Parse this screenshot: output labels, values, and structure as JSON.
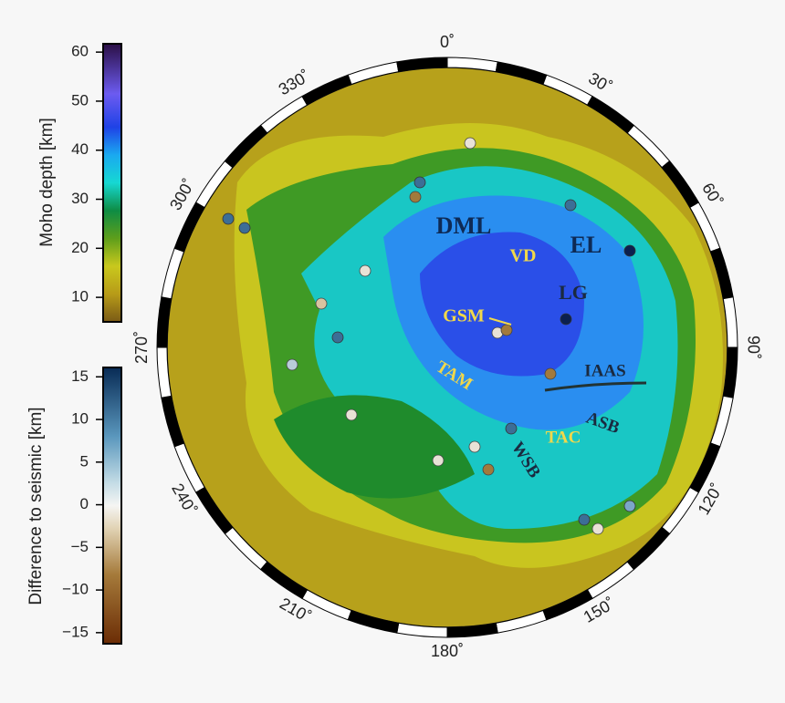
{
  "colorbars": [
    {
      "title": "Moho depth [km]",
      "range": [
        5,
        61.7
      ],
      "ticks": [
        10,
        20,
        30,
        40,
        50,
        60
      ]
    },
    {
      "title": "Difference to seismic [km]",
      "range": [
        -16.3,
        16.1
      ],
      "ticks": [
        {
          "value": -15,
          "label": "−15"
        },
        {
          "value": -10,
          "label": "−10"
        },
        {
          "value": -5,
          "label": "−5"
        },
        0,
        5,
        10,
        15
      ]
    }
  ],
  "map": {
    "azimuth_labels": [
      {
        "value": 0,
        "label": "0˚"
      },
      {
        "value": 30,
        "label": "30˚"
      },
      {
        "value": 60,
        "label": "60˚"
      },
      {
        "value": 90,
        "label": "90˚"
      },
      {
        "value": 120,
        "label": "120˚"
      },
      {
        "value": 150,
        "label": "150˚"
      },
      {
        "value": 180,
        "label": "180˚"
      },
      {
        "value": 210,
        "label": "210˚"
      },
      {
        "value": 240,
        "label": "240˚"
      },
      {
        "value": 270,
        "label": "270˚"
      },
      {
        "value": 300,
        "label": "300˚"
      },
      {
        "value": 330,
        "label": "330˚"
      }
    ],
    "regions": [
      "DML",
      "VD",
      "EL",
      "LG",
      "GSM",
      "TAM",
      "IAAS",
      "ASB",
      "TAC",
      "WSB"
    ]
  }
}
